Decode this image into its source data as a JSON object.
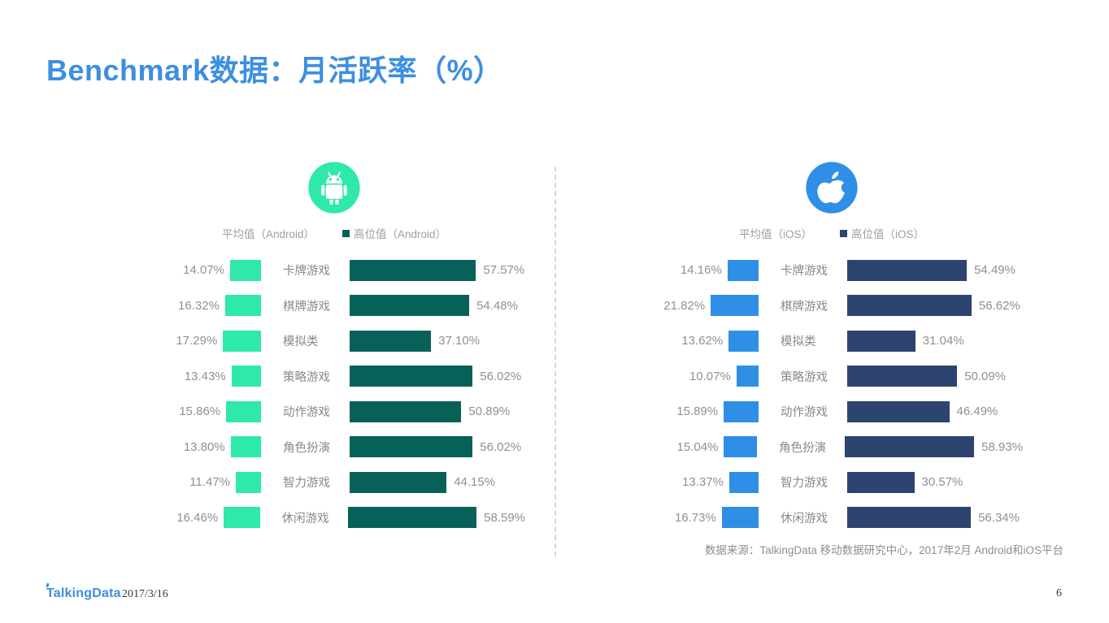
{
  "title": "Benchmark数据：月活跃率（%）",
  "colors": {
    "title_blue": "#3D8FE0",
    "android_avg": "#2FE8AC",
    "android_high": "#086158",
    "ios_avg": "#2F8FE6",
    "ios_dark": "#2E4470",
    "text_gray": "#8c9196"
  },
  "icons": {
    "android": "android-icon",
    "ios": "apple-icon"
  },
  "chart_data": [
    {
      "type": "bar",
      "platform": "Android",
      "orientation": "horizontal-dual",
      "legend": [
        "平均值（Android）",
        "高位值（Android）"
      ],
      "legend_swatch_shown": [
        false,
        true
      ],
      "categories": [
        "卡牌游戏",
        "棋牌游戏",
        "模拟类",
        "策略游戏",
        "动作游戏",
        "角色扮演",
        "智力游戏",
        "休闲游戏"
      ],
      "series": [
        {
          "name": "平均值（Android）",
          "color": "#2FE8AC",
          "values": [
            14.07,
            16.32,
            17.29,
            13.43,
            15.86,
            13.8,
            11.47,
            16.46
          ]
        },
        {
          "name": "高位值（Android）",
          "color": "#086158",
          "values": [
            57.57,
            54.48,
            37.1,
            56.02,
            50.89,
            56.02,
            44.15,
            58.59
          ]
        }
      ],
      "value_suffix": "%",
      "value_decimals": 2
    },
    {
      "type": "bar",
      "platform": "iOS",
      "orientation": "horizontal-dual",
      "legend": [
        "平均值（iOS）",
        "高位值（iOS）"
      ],
      "legend_swatch_shown": [
        false,
        true
      ],
      "categories": [
        "卡牌游戏",
        "棋牌游戏",
        "模拟类",
        "策略游戏",
        "动作游戏",
        "角色扮演",
        "智力游戏",
        "休闲游戏"
      ],
      "series": [
        {
          "name": "平均值（iOS）",
          "color": "#2F8FE6",
          "values": [
            14.16,
            21.82,
            13.62,
            10.07,
            15.89,
            15.04,
            13.37,
            16.73
          ]
        },
        {
          "name": "高位值（iOS）",
          "color": "#2E4470",
          "values": [
            54.49,
            56.62,
            31.04,
            50.09,
            46.49,
            58.93,
            30.57,
            56.34
          ]
        }
      ],
      "value_suffix": "%",
      "value_decimals": 2
    }
  ],
  "footer": {
    "source_note": "数据来源：TalkingData 移动数据研究中心，2017年2月 Android和iOS平台",
    "logo_text": "TalkingData",
    "date": "2017/3/16",
    "page_number": "6"
  }
}
